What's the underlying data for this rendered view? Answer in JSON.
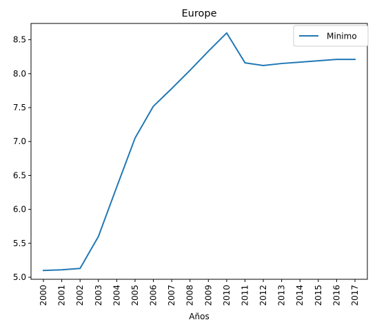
{
  "chart_data": {
    "type": "line",
    "title": "Europe",
    "xlabel": "Años",
    "ylabel": "",
    "x": [
      "2000",
      "2001",
      "2002",
      "2003",
      "2004",
      "2005",
      "2006",
      "2007",
      "2008",
      "2009",
      "2010",
      "2011",
      "2012",
      "2013",
      "2014",
      "2015",
      "2016",
      "2017"
    ],
    "series": [
      {
        "name": "Minimo",
        "color": "#1f77b4",
        "values": [
          5.1,
          5.11,
          5.13,
          5.6,
          6.33,
          7.05,
          7.52,
          7.78,
          8.05,
          8.33,
          8.6,
          8.16,
          8.12,
          8.15,
          8.17,
          8.19,
          8.21,
          8.21
        ]
      }
    ],
    "ylim": [
      4.97,
      8.74
    ],
    "yticks": [
      "5.0",
      "5.5",
      "6.0",
      "6.5",
      "7.0",
      "7.5",
      "8.0",
      "8.5"
    ],
    "legend_position": "top-right",
    "grid": false
  }
}
